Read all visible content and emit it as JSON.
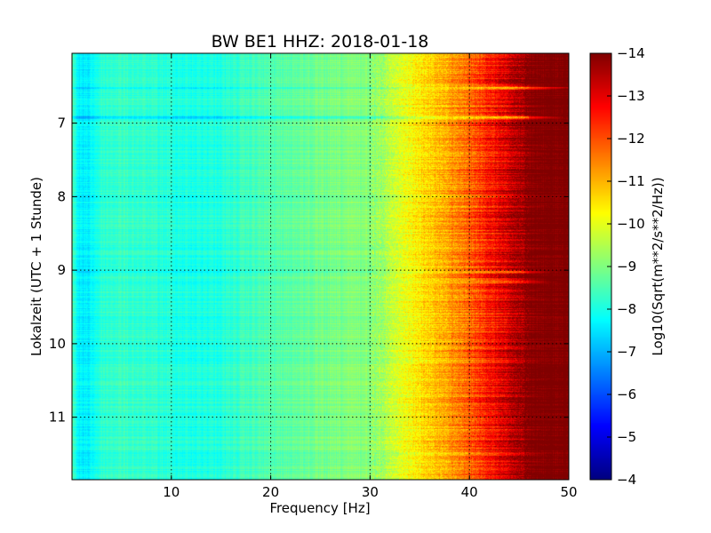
{
  "chart_data": {
    "type": "heatmap",
    "title": "BW BE1 HHZ: 2018-01-18",
    "xlabel": "Frequency [Hz]",
    "ylabel": "Lokalzeit (UTC + 1 Stunde)",
    "colorbar_label": "Log10(Sqrt(m**2/s**2/Hz))",
    "colormap": "jet",
    "xlim": [
      0,
      50
    ],
    "ylim": [
      11.85,
      6.05
    ],
    "clim": [
      -14,
      -4
    ],
    "grid": true,
    "x_ticks": [
      10,
      20,
      30,
      40,
      50
    ],
    "x_tick_labels": [
      "10",
      "20",
      "30",
      "40",
      "50"
    ],
    "y_ticks": [
      7,
      8,
      9,
      10,
      11
    ],
    "y_tick_labels": [
      "7",
      "8",
      "9",
      "10",
      "11"
    ],
    "colorbar_ticks": [
      -4,
      -5,
      -6,
      -7,
      -8,
      -9,
      -10,
      -11,
      -12,
      -13,
      -14
    ],
    "colorbar_tick_labels": [
      "−4",
      "−5",
      "−6",
      "−7",
      "−8",
      "−9",
      "−10",
      "−11",
      "−12",
      "−13",
      "−14"
    ],
    "spectrum_profile": {
      "frequency_hz": [
        0,
        0.7,
        1.5,
        3,
        5,
        8,
        12,
        15,
        18,
        22,
        26,
        30,
        32,
        34,
        36,
        38,
        40,
        42,
        43.5,
        45,
        46.5,
        50
      ],
      "log10_amplitude": [
        -8.6,
        -7.6,
        -7.6,
        -8.2,
        -8.3,
        -8.2,
        -8.0,
        -8.1,
        -8.4,
        -8.7,
        -8.9,
        -9.1,
        -9.6,
        -10.2,
        -10.7,
        -11.2,
        -11.8,
        -12.5,
        -13.1,
        -13.7,
        -14,
        -14
      ]
    },
    "bands": [
      {
        "time_h": 6.52,
        "delta_log10": 0.5,
        "extra_fmax_hz": 6
      },
      {
        "time_h": 6.92,
        "delta_log10": 1.0,
        "extra_fmax_hz": 5
      },
      {
        "time_h": 9.02,
        "delta_log10": 0.5,
        "extra_fmax_hz": 4
      },
      {
        "time_h": 9.16,
        "delta_log10": 0.3,
        "extra_fmax_hz": 3
      }
    ]
  }
}
